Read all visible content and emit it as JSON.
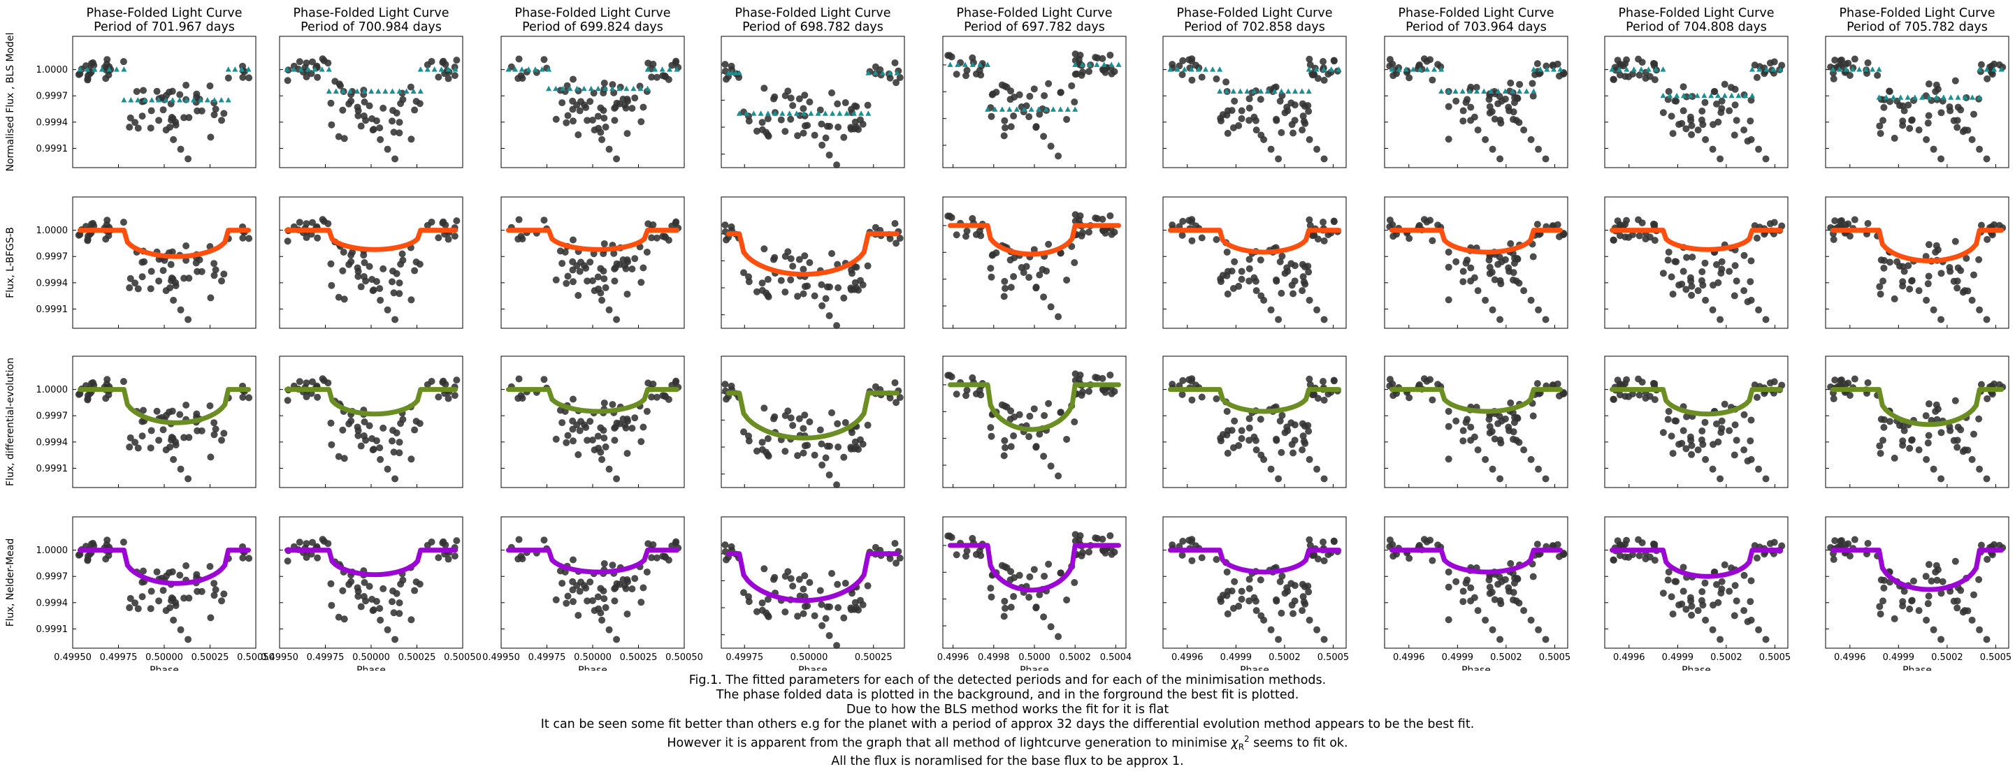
{
  "figure": {
    "panel_title_prefix": "Phase-Folded Light Curve",
    "period_prefix": "Period of ",
    "period_suffix": " days",
    "xlabel": "Phase",
    "row_ylabels": [
      "Normalised Flux , BLS Model",
      "Flux, L-BFGS-B",
      "Flux, differential-evolution",
      "Flux, Nelder-Mead"
    ],
    "row_fit_colors": [
      "#1a8f8f",
      "#ff4f0f",
      "#6b8e23",
      "#9b06d4"
    ],
    "data_color": "#333333",
    "ytick_labels": [
      "1.0000",
      "0.9997",
      "0.9994",
      "0.9991"
    ]
  },
  "chart_data": {
    "type": "scatter",
    "yticks": [
      1.0,
      0.9997,
      0.9994,
      0.9991
    ],
    "columns": [
      {
        "period": "701.967",
        "xlim": [
          0.4995,
          0.5005
        ],
        "xticks": [
          0.4995,
          0.49975,
          0.5,
          0.50025,
          0.5005
        ],
        "xtick_labels": [
          "0.49950",
          "0.49975",
          "0.50000",
          "0.50025",
          "0.50050"
        ],
        "ylim": [
          0.99888,
          1.00038
        ],
        "ingress": [
          0.49978,
          0.50035
        ],
        "depth": [
          0.99965,
          0.9997,
          0.99962,
          0.99962
        ]
      },
      {
        "period": "700.984",
        "xlim": [
          0.4995,
          0.5005
        ],
        "xticks": [
          0.4995,
          0.49975,
          0.5,
          0.50025,
          0.5005
        ],
        "xtick_labels": [
          "0.49950",
          "0.49975",
          "0.50000",
          "0.50025",
          "0.50050"
        ],
        "ylim": [
          0.99888,
          1.00038
        ],
        "ingress": [
          0.49977,
          0.50027
        ],
        "depth": [
          0.99975,
          0.99978,
          0.99972,
          0.99972
        ]
      },
      {
        "period": "699.824",
        "xlim": [
          0.4995,
          0.5005
        ],
        "xticks": [
          0.4995,
          0.49975,
          0.5,
          0.50025,
          0.5005
        ],
        "xtick_labels": [
          "0.49950",
          "0.49975",
          "0.50000",
          "0.50025",
          "0.50050"
        ],
        "ylim": [
          0.99888,
          1.00038
        ],
        "ingress": [
          0.49976,
          0.5003
        ],
        "depth": [
          0.99978,
          0.99978,
          0.99975,
          0.99975
        ]
      },
      {
        "period": "698.782",
        "xlim": [
          0.49966,
          0.50037
        ],
        "xticks": [
          0.49975,
          0.5,
          0.50025
        ],
        "xtick_labels": [
          "0.49975",
          "0.50000",
          "0.50025"
        ],
        "ylim": [
          0.99895,
          1.00041
        ],
        "ingress": [
          0.49973,
          0.50023
        ],
        "depth": [
          0.99955,
          0.99955,
          0.9995,
          0.99948
        ]
      },
      {
        "period": "697.782",
        "xlim": [
          0.49955,
          0.50045
        ],
        "xticks": [
          0.4996,
          0.4998,
          0.5,
          0.5002,
          0.5004
        ],
        "xtick_labels": [
          "0.4996",
          "0.4998",
          "0.5000",
          "0.5002",
          "0.5004"
        ],
        "ylim": [
          0.99885,
          1.00032
        ],
        "ingress": [
          0.49977,
          0.5002
        ],
        "depth": [
          0.9995,
          0.99968,
          0.9995,
          0.9995
        ]
      },
      {
        "period": "702.858",
        "xlim": [
          0.49945,
          0.50058
        ],
        "xticks": [
          0.4996,
          0.4999,
          0.5002,
          0.5005
        ],
        "xtick_labels": [
          "0.4996",
          "0.4999",
          "0.5002",
          "0.5005"
        ],
        "ylim": [
          0.99888,
          1.00038
        ],
        "ingress": [
          0.4998,
          0.50035
        ],
        "depth": [
          0.99975,
          0.99975,
          0.99975,
          0.99975
        ]
      },
      {
        "period": "703.964",
        "xlim": [
          0.49945,
          0.50058
        ],
        "xticks": [
          0.4996,
          0.4999,
          0.5002,
          0.5005
        ],
        "xtick_labels": [
          "0.4996",
          "0.4999",
          "0.5002",
          "0.5005"
        ],
        "ylim": [
          0.99888,
          1.00038
        ],
        "ingress": [
          0.4998,
          0.50037
        ],
        "depth": [
          0.99975,
          0.99975,
          0.99975,
          0.99975
        ]
      },
      {
        "period": "704.808",
        "xlim": [
          0.49945,
          0.50058
        ],
        "xticks": [
          0.4996,
          0.4999,
          0.5002,
          0.5005
        ],
        "xtick_labels": [
          "0.4996",
          "0.4999",
          "0.5002",
          "0.5005"
        ],
        "ylim": [
          0.99888,
          1.00038
        ],
        "ingress": [
          0.49981,
          0.50036
        ],
        "depth": [
          0.9997,
          0.99978,
          0.99972,
          0.9997
        ]
      },
      {
        "period": "705.782",
        "xlim": [
          0.49945,
          0.50058
        ],
        "xticks": [
          0.4996,
          0.4999,
          0.5002,
          0.5005
        ],
        "xtick_labels": [
          "0.4996",
          "0.4999",
          "0.5002",
          "0.5005"
        ],
        "ylim": [
          0.99888,
          1.00038
        ],
        "ingress": [
          0.49978,
          0.5004
        ],
        "depth": [
          0.99968,
          0.99965,
          0.9996,
          0.99955
        ]
      }
    ]
  },
  "caption": {
    "line1": "Fig.1. The fitted parameters for each of the detected periods and for each of the minimisation methods.",
    "line2": "The phase folded data is plotted in the background, and in the forground the best fit is plotted.",
    "line3": "Due to how the BLS method works the fit for it is flat",
    "line4": "It can be seen some fit better than others e.g for the planet with a period of approx 32 days the differential evolution method appears to be the best fit.",
    "line5_pre": "However it is apparent from the graph that all method of lightcurve generation to minimise ",
    "chi_symbol": "χ",
    "chi_sub": "R",
    "chi_sup": "2",
    "line5_post": " seems to fit ok.",
    "line6": "All the flux is noramlised for the base flux to be approx 1."
  }
}
